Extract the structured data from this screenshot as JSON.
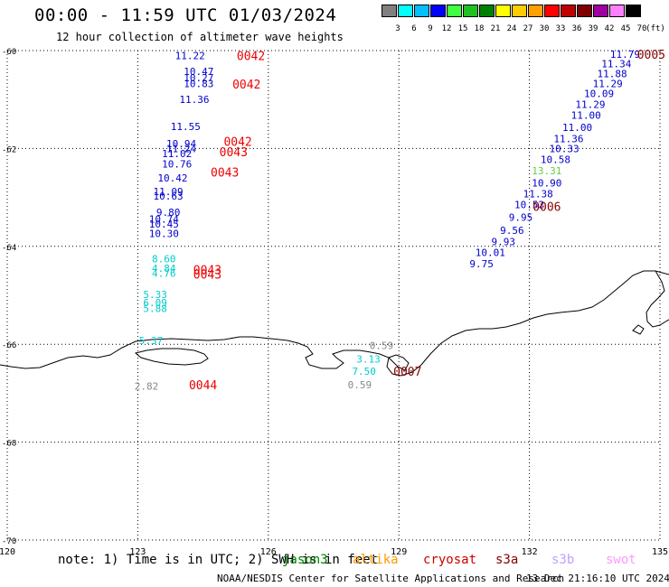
{
  "title": "00:00 - 11:59 UTC 01/03/2024",
  "subtitle": "12 hour collection of altimeter wave heights",
  "colorbar": {
    "colors": [
      "#808080",
      "#00ffff",
      "#00c0ff",
      "#0000ff",
      "#40ff40",
      "#20c020",
      "#008000",
      "#ffff00",
      "#ffcc00",
      "#ffa000",
      "#ff0000",
      "#c00000",
      "#800000",
      "#a000a0",
      "#ff80ff",
      "#000000"
    ],
    "labels": [
      "3",
      "6",
      "9",
      "12",
      "15",
      "18",
      "21",
      "24",
      "27",
      "30",
      "33",
      "36",
      "39",
      "42",
      "45",
      "70"
    ],
    "unit": "(ft)"
  },
  "axes": {
    "lon_ticks": [
      "120",
      "123",
      "126",
      "129",
      "132",
      "135"
    ],
    "lat_ticks": [
      "-60",
      "-62",
      "-64",
      "-66",
      "-68",
      "-70"
    ]
  },
  "obs_tracks": [
    {
      "label_color": "#0000cc",
      "points": [
        {
          "lon": 124.2,
          "lat": -60.1,
          "v": "11.22"
        },
        {
          "lon": 124.4,
          "lat": -60.42,
          "v": "10.47"
        },
        {
          "lon": 124.4,
          "lat": -60.55,
          "v": "10.27"
        },
        {
          "lon": 124.4,
          "lat": -60.67,
          "v": "10.83"
        },
        {
          "lon": 124.3,
          "lat": -61.0,
          "v": "11.36"
        },
        {
          "lon": 124.1,
          "lat": -61.55,
          "v": "11.55"
        },
        {
          "lon": 124.0,
          "lat": -61.9,
          "v": "10.94"
        },
        {
          "lon": 124.0,
          "lat": -62.0,
          "v": "11.24"
        },
        {
          "lon": 123.9,
          "lat": -62.1,
          "v": "11.02"
        },
        {
          "lon": 123.9,
          "lat": -62.32,
          "v": "10.76"
        },
        {
          "lon": 123.8,
          "lat": -62.6,
          "v": "10.42"
        },
        {
          "lon": 123.7,
          "lat": -62.88,
          "v": "11.09"
        },
        {
          "lon": 123.7,
          "lat": -62.97,
          "v": "10.63"
        },
        {
          "lon": 123.7,
          "lat": -63.3,
          "v": "9.80"
        },
        {
          "lon": 123.6,
          "lat": -63.44,
          "v": "10.74"
        },
        {
          "lon": 123.6,
          "lat": -63.54,
          "v": "10.45"
        },
        {
          "lon": 123.6,
          "lat": -63.74,
          "v": "10.30"
        }
      ]
    },
    {
      "label_color": "#00cccc",
      "points": [
        {
          "lon": 123.6,
          "lat": -64.25,
          "v": "8.60"
        },
        {
          "lon": 123.6,
          "lat": -64.45,
          "v": "4.84"
        },
        {
          "lon": 123.6,
          "lat": -64.55,
          "v": "4.76"
        },
        {
          "lon": 123.4,
          "lat": -64.98,
          "v": "5.33"
        },
        {
          "lon": 123.4,
          "lat": -65.15,
          "v": "6.09"
        },
        {
          "lon": 123.4,
          "lat": -65.27,
          "v": "5.88"
        },
        {
          "lon": 123.3,
          "lat": -65.92,
          "v": "5.37"
        }
      ]
    },
    {
      "label_color": "#0000cc",
      "points": [
        {
          "lon": 134.2,
          "lat": -60.07,
          "v": "11.79"
        },
        {
          "lon": 134.0,
          "lat": -60.27,
          "v": "11.34"
        },
        {
          "lon": 133.9,
          "lat": -60.47,
          "v": "11.88"
        },
        {
          "lon": 133.8,
          "lat": -60.67,
          "v": "11.29"
        },
        {
          "lon": 133.6,
          "lat": -60.88,
          "v": "10.09"
        },
        {
          "lon": 133.4,
          "lat": -61.1,
          "v": "11.29"
        },
        {
          "lon": 133.3,
          "lat": -61.32,
          "v": "11.00"
        },
        {
          "lon": 133.1,
          "lat": -61.57,
          "v": "11.00"
        },
        {
          "lon": 132.9,
          "lat": -61.8,
          "v": "11.36"
        },
        {
          "lon": 132.8,
          "lat": -62.0,
          "v": "10.33"
        },
        {
          "lon": 132.6,
          "lat": -62.22,
          "v": "10.58"
        },
        {
          "lon": 132.4,
          "lat": -62.7,
          "v": "10.90"
        },
        {
          "lon": 132.2,
          "lat": -62.92,
          "v": "11.38"
        },
        {
          "lon": 132.0,
          "lat": -63.15,
          "v": "10.52"
        },
        {
          "lon": 131.8,
          "lat": -63.4,
          "v": "9.95"
        },
        {
          "lon": 131.6,
          "lat": -63.67,
          "v": "9.56"
        },
        {
          "lon": 131.4,
          "lat": -63.9,
          "v": "9.93"
        },
        {
          "lon": 131.1,
          "lat": -64.12,
          "v": "10.01"
        },
        {
          "lon": 130.9,
          "lat": -64.35,
          "v": "9.75"
        }
      ]
    },
    {
      "label_color": "#66cc44",
      "points": [
        {
          "lon": 132.4,
          "lat": -62.45,
          "v": "13.31"
        }
      ]
    },
    {
      "label_color": "#00cccc",
      "points": [
        {
          "lon": 128.3,
          "lat": -66.3,
          "v": "3.13"
        },
        {
          "lon": 128.2,
          "lat": -66.55,
          "v": "7.50"
        }
      ]
    },
    {
      "label_color": "#888888",
      "points": [
        {
          "lon": 128.6,
          "lat": -66.02,
          "v": "0.59"
        },
        {
          "lon": 128.1,
          "lat": -66.83,
          "v": "0.59"
        },
        {
          "lon": 123.2,
          "lat": -66.85,
          "v": "2.82"
        }
      ]
    }
  ],
  "pass_labels": [
    {
      "lon": 125.6,
      "lat": -60.1,
      "text": "0042",
      "color": "#ee0000"
    },
    {
      "lon": 125.5,
      "lat": -60.68,
      "text": "0042",
      "color": "#ee0000"
    },
    {
      "lon": 125.3,
      "lat": -61.85,
      "text": "0042",
      "color": "#ee0000"
    },
    {
      "lon": 125.2,
      "lat": -62.07,
      "text": "0043",
      "color": "#ee0000"
    },
    {
      "lon": 125.0,
      "lat": -62.48,
      "text": "0043",
      "color": "#ee0000"
    },
    {
      "lon": 124.6,
      "lat": -64.47,
      "text": "0043",
      "color": "#ee0000"
    },
    {
      "lon": 124.6,
      "lat": -64.57,
      "text": "0043",
      "color": "#ee0000"
    },
    {
      "lon": 124.5,
      "lat": -66.83,
      "text": "0044",
      "color": "#ee0000"
    },
    {
      "lon": 134.8,
      "lat": -60.07,
      "text": "0005",
      "color": "#880000"
    },
    {
      "lon": 132.4,
      "lat": -63.18,
      "text": "0006",
      "color": "#880000"
    },
    {
      "lon": 129.2,
      "lat": -66.55,
      "text": "0007",
      "color": "#880000"
    }
  ],
  "note": "note: 1) Time is in UTC; 2) SWH is in feet",
  "satellites": [
    {
      "name": "jason3",
      "color": "#008000"
    },
    {
      "name": "altika",
      "color": "#ff9900"
    },
    {
      "name": "cryosat",
      "color": "#cc0000"
    },
    {
      "name": "s3a",
      "color": "#800000"
    },
    {
      "name": "s3b",
      "color": "#c0a0ff"
    },
    {
      "name": "swot",
      "color": "#ff99ff"
    }
  ],
  "footer": {
    "credit": "NOAA/NESDIS Center for Satellite Applications and Research",
    "timestamp": "13 Dec 21:16:10 UTC 2024"
  }
}
